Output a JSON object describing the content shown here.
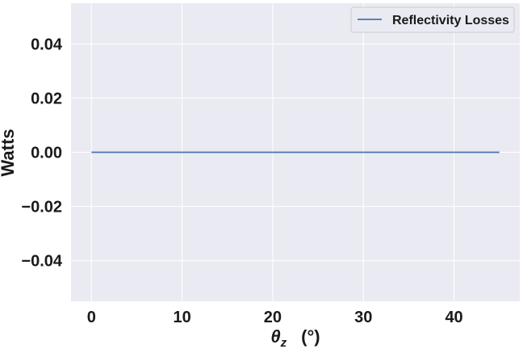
{
  "chart_data": {
    "type": "line",
    "xlabel_symbol": "θ",
    "xlabel_subscript": "z",
    "xlabel_unit": "(°)",
    "ylabel": "Watts",
    "xlim": [
      -2.25,
      47.25
    ],
    "ylim": [
      -0.055,
      0.055
    ],
    "xticks": [
      0,
      10,
      20,
      30,
      40
    ],
    "xtick_labels": [
      "0",
      "10",
      "20",
      "30",
      "40"
    ],
    "yticks": [
      0.04,
      0.02,
      0.0,
      -0.02,
      -0.04
    ],
    "ytick_labels": [
      "0.04",
      "0.02",
      "0.00",
      "−0.02",
      "−0.04"
    ],
    "grid": true,
    "legend_position": "top-right",
    "background_color": "#eaeaf2",
    "grid_color": "#ffffff",
    "series": [
      {
        "name": "Reflectivity Losses",
        "color": "#4c72b0",
        "x": [
          0,
          45
        ],
        "y": [
          0.0,
          0.0
        ]
      }
    ]
  }
}
